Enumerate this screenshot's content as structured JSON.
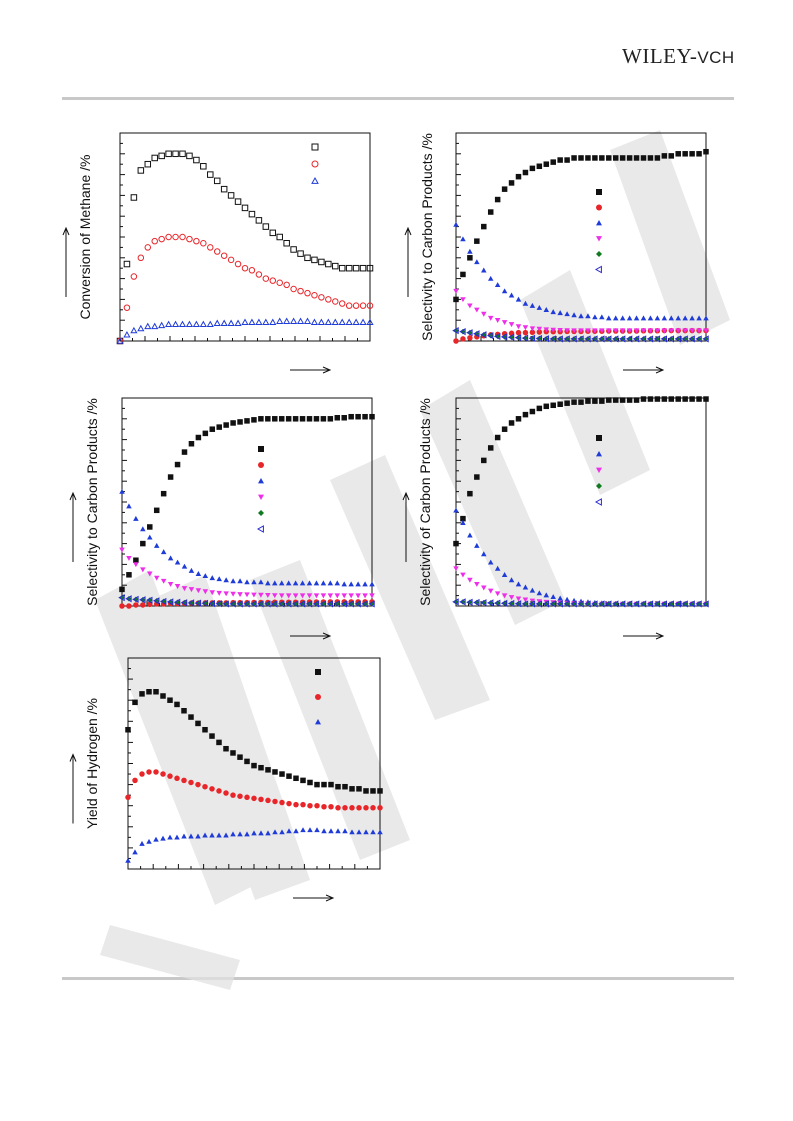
{
  "header": {
    "logo_main": "WILEY",
    "logo_sep": "-",
    "logo_sub": "VCH"
  },
  "watermark": {
    "color": "#d9d9d9"
  },
  "colors": {
    "black": "#111111",
    "red": "#e8262a",
    "blue": "#1f3bd8",
    "magenta": "#ee2ee8",
    "green": "#0f7a1f",
    "darkblue": "#2a2ad0"
  },
  "chart_data": [
    {
      "id": "conversion-methane",
      "type": "scatter",
      "title": "",
      "xlabel": "",
      "ylabel": "Conversion of Methane /%",
      "xlim": [
        0,
        36
      ],
      "ylim": [
        0,
        100
      ],
      "legend_position": "top-right",
      "series": [
        {
          "marker": "square-open",
          "color": "#111111",
          "values": [
            0,
            37,
            69,
            82,
            85,
            88,
            89,
            90,
            90,
            90,
            89,
            87,
            84,
            80,
            77,
            73,
            70,
            67,
            64,
            61,
            58,
            55,
            52,
            50,
            47,
            44,
            42,
            40,
            39,
            38,
            37,
            36,
            35,
            35,
            35,
            35,
            35
          ]
        },
        {
          "marker": "circle-open",
          "color": "#e8262a",
          "values": [
            0,
            16,
            31,
            40,
            45,
            48,
            49,
            50,
            50,
            50,
            49,
            48,
            47,
            45,
            43,
            41,
            39,
            37,
            35,
            34,
            32,
            30,
            29,
            28,
            27,
            25,
            24,
            23,
            22,
            21,
            20,
            19,
            18,
            17,
            17,
            17,
            17
          ]
        },
        {
          "marker": "triangle-open",
          "color": "#1f3bd8",
          "values": [
            0,
            3,
            5,
            6,
            7,
            7,
            7.5,
            8,
            8,
            8,
            8,
            8,
            8,
            8,
            8.5,
            8.5,
            8.5,
            8.5,
            9,
            9,
            9,
            9,
            9,
            9.5,
            9.5,
            9.5,
            9.5,
            9.5,
            9,
            9,
            9,
            9,
            9,
            9,
            9,
            9,
            9
          ]
        }
      ]
    },
    {
      "id": "selectivity-carbon-1",
      "type": "scatter",
      "title": "",
      "xlabel": "",
      "ylabel": "Selectivity to Carbon Products /%",
      "xlim": [
        0,
        36
      ],
      "ylim": [
        0,
        100
      ],
      "legend_position": "right-center",
      "series": [
        {
          "marker": "square-filled",
          "color": "#111111",
          "values": [
            20,
            32,
            40,
            48,
            55,
            62,
            68,
            73,
            76,
            79,
            81,
            83,
            84,
            85,
            86,
            87,
            87,
            88,
            88,
            88,
            88,
            88,
            88,
            88,
            88,
            88,
            88,
            88,
            88,
            88,
            89,
            89,
            90,
            90,
            90,
            90,
            91
          ]
        },
        {
          "marker": "circle-filled",
          "color": "#e8262a",
          "values": [
            0,
            1,
            1.5,
            2,
            2.5,
            3,
            3.2,
            3.5,
            3.7,
            4,
            4,
            4.2,
            4.3,
            4.5,
            4.5,
            4.5,
            4.6,
            4.6,
            4.6,
            4.7,
            4.7,
            4.7,
            4.8,
            4.8,
            4.8,
            4.8,
            4.8,
            4.9,
            4.9,
            4.9,
            5,
            5,
            5,
            5,
            5,
            5,
            5
          ]
        },
        {
          "marker": "triangle-filled",
          "color": "#1f3bd8",
          "values": [
            56,
            49,
            43,
            38,
            34,
            30,
            27,
            24,
            22,
            20,
            18,
            17,
            16,
            15,
            14,
            13.5,
            13,
            12.5,
            12,
            12,
            11.5,
            11.5,
            11,
            11,
            11,
            11,
            11,
            11,
            11,
            11,
            11,
            11,
            11,
            11,
            11,
            11,
            11
          ]
        },
        {
          "marker": "triangle-down-filled",
          "color": "#ee2ee8",
          "values": [
            24,
            20,
            17,
            15,
            13,
            11,
            10,
            9,
            8,
            7,
            6.5,
            6,
            5.8,
            5.5,
            5.3,
            5.2,
            5.1,
            5,
            5,
            5,
            5,
            5,
            5,
            5,
            5,
            5,
            5,
            5,
            5,
            5,
            5,
            5,
            5,
            5,
            5,
            5,
            5
          ]
        },
        {
          "marker": "diamond-filled",
          "color": "#0f7a1f",
          "values": [
            5,
            4.5,
            4,
            3.5,
            3,
            2.6,
            2.2,
            2,
            1.8,
            1.6,
            1.4,
            1.3,
            1.2,
            1.1,
            1,
            1,
            1,
            1,
            1,
            1,
            1,
            1,
            1,
            1,
            1,
            1,
            1,
            1,
            1,
            1,
            1,
            1,
            1,
            1,
            1,
            1,
            1
          ]
        },
        {
          "marker": "triangle-left-open",
          "color": "#2a2ad0",
          "values": [
            5,
            4.5,
            4,
            3.5,
            3,
            2.6,
            2.2,
            2,
            1.8,
            1.6,
            1.4,
            1.3,
            1.2,
            1.1,
            1,
            1,
            1,
            1,
            1,
            1,
            1,
            1,
            1,
            1,
            1,
            1,
            1,
            1,
            1,
            1,
            1,
            1,
            1,
            1,
            1,
            1,
            1
          ]
        }
      ]
    },
    {
      "id": "selectivity-carbon-2",
      "type": "scatter",
      "title": "",
      "xlabel": "",
      "ylabel": "Selectivity to Carbon Products /%",
      "xlim": [
        0,
        36
      ],
      "ylim": [
        0,
        100
      ],
      "legend_position": "right-center",
      "series": [
        {
          "marker": "square-filled",
          "color": "#111111",
          "values": [
            8,
            15,
            22,
            30,
            38,
            46,
            54,
            62,
            68,
            74,
            78,
            81,
            83,
            85,
            86,
            87,
            88,
            88.5,
            89,
            89.5,
            90,
            90,
            90,
            90,
            90,
            90,
            90,
            90,
            90,
            90,
            90,
            90.5,
            90.5,
            91,
            91,
            91,
            91
          ]
        },
        {
          "marker": "circle-filled",
          "color": "#e8262a",
          "values": [
            0,
            0,
            0.5,
            0.5,
            0.8,
            1,
            1,
            1.2,
            1.2,
            1.3,
            1.4,
            1.4,
            1.5,
            1.5,
            1.5,
            1.5,
            1.6,
            1.6,
            1.6,
            1.7,
            1.7,
            1.7,
            1.8,
            1.8,
            1.8,
            1.8,
            1.8,
            1.9,
            1.9,
            1.9,
            2,
            2,
            2,
            2,
            2,
            2,
            2
          ]
        },
        {
          "marker": "triangle-filled",
          "color": "#1f3bd8",
          "values": [
            55,
            48,
            42,
            37,
            33,
            29,
            26,
            23,
            21,
            19,
            17,
            15.5,
            14.5,
            13.5,
            13,
            12.5,
            12,
            12,
            11.5,
            11.5,
            11.5,
            11,
            11,
            11,
            11,
            11,
            11,
            11,
            11,
            11,
            11,
            11,
            10.5,
            10.5,
            10.5,
            10.5,
            10.5
          ]
        },
        {
          "marker": "triangle-down-filled",
          "color": "#ee2ee8",
          "values": [
            27,
            23,
            20,
            17.5,
            15.5,
            13.5,
            12,
            10.5,
            9.5,
            8.5,
            8,
            7.5,
            7,
            6.5,
            6.2,
            6,
            5.8,
            5.6,
            5.5,
            5.4,
            5.3,
            5.2,
            5.1,
            5,
            5,
            5,
            5,
            5,
            5,
            5,
            5,
            5,
            5,
            5,
            5,
            5,
            5
          ]
        },
        {
          "marker": "diamond-filled",
          "color": "#0f7a1f",
          "values": [
            4,
            3.5,
            3.2,
            3,
            2.8,
            2.5,
            2.2,
            2,
            1.8,
            1.6,
            1.5,
            1.4,
            1.3,
            1.2,
            1.1,
            1,
            1,
            1,
            1,
            1,
            1,
            1,
            1,
            1,
            1,
            1,
            1,
            1,
            1,
            1,
            1,
            1,
            1,
            1,
            1,
            1,
            1
          ]
        },
        {
          "marker": "triangle-left-open",
          "color": "#2a2ad0",
          "values": [
            4,
            3.5,
            3.2,
            3,
            2.8,
            2.5,
            2.2,
            2,
            1.8,
            1.6,
            1.5,
            1.4,
            1.3,
            1.2,
            1.1,
            1,
            1,
            1,
            1,
            1,
            1,
            1,
            1,
            1,
            1,
            1,
            1,
            1,
            1,
            1,
            1,
            1,
            1,
            1,
            1,
            1,
            1
          ]
        }
      ]
    },
    {
      "id": "selectivity-carbon-3",
      "type": "scatter",
      "title": "",
      "xlabel": "",
      "ylabel": "Selectivity of Carbon Products /%",
      "xlim": [
        0,
        36
      ],
      "ylim": [
        0,
        100
      ],
      "legend_position": "right-center",
      "series": [
        {
          "marker": "square-filled",
          "color": "#111111",
          "values": [
            30,
            42,
            54,
            62,
            70,
            76,
            81,
            85,
            88,
            90,
            92,
            93.5,
            95,
            96,
            96.5,
            97,
            97.5,
            98,
            98,
            98.5,
            98.5,
            98.5,
            99,
            99,
            99,
            99,
            99,
            99.5,
            99.5,
            99.5,
            99.5,
            99.5,
            99.5,
            99.5,
            99.5,
            99.5,
            99.5
          ]
        },
        {
          "marker": "triangle-filled",
          "color": "#1f3bd8",
          "values": [
            46,
            40,
            34,
            29,
            25,
            21,
            18,
            15,
            12.5,
            10.5,
            9,
            7.5,
            6.2,
            5.2,
            4.4,
            3.7,
            3.1,
            2.6,
            2.2,
            1.9,
            1.6,
            1.4,
            1.2,
            1.1,
            1,
            1,
            1,
            1,
            1,
            1,
            1,
            1,
            1,
            1,
            1,
            1,
            1
          ]
        },
        {
          "marker": "triangle-down-filled",
          "color": "#ee2ee8",
          "values": [
            18,
            15,
            12.5,
            10.5,
            8.8,
            7.3,
            6,
            5,
            4.2,
            3.5,
            3,
            2.5,
            2.2,
            1.9,
            1.7,
            1.5,
            1.4,
            1.3,
            1.2,
            1.1,
            1,
            1,
            1,
            1,
            1,
            1,
            1,
            1,
            1,
            1,
            1,
            1,
            1,
            1,
            1,
            1,
            1
          ]
        },
        {
          "marker": "diamond-filled",
          "color": "#0f7a1f",
          "values": [
            2,
            2,
            1.8,
            1.7,
            1.6,
            1.5,
            1.4,
            1.3,
            1.2,
            1.1,
            1,
            1,
            1,
            1,
            1,
            1,
            1,
            1,
            1,
            1,
            1,
            1,
            1,
            1,
            1,
            1,
            1,
            1,
            1,
            1,
            1,
            1,
            1,
            1,
            1,
            1,
            1
          ]
        },
        {
          "marker": "triangle-left-open",
          "color": "#2a2ad0",
          "values": [
            2,
            2,
            1.8,
            1.7,
            1.6,
            1.5,
            1.4,
            1.3,
            1.2,
            1.1,
            1,
            1,
            1,
            1,
            1,
            1,
            1,
            1,
            1,
            1,
            1,
            1,
            1,
            1,
            1,
            1,
            1,
            1,
            1,
            1,
            1,
            1,
            1,
            1,
            1,
            1,
            1
          ]
        }
      ]
    },
    {
      "id": "yield-hydrogen",
      "type": "scatter",
      "title": "",
      "xlabel": "",
      "ylabel": "Yield of Hydrogen /%",
      "xlim": [
        0,
        36
      ],
      "ylim": [
        0,
        100
      ],
      "legend_position": "top-right",
      "series": [
        {
          "marker": "square-filled",
          "color": "#111111",
          "values": [
            66,
            79,
            83,
            84,
            84,
            82,
            80,
            78,
            75,
            72,
            69,
            66,
            63,
            60,
            57,
            55,
            53,
            51,
            49,
            48,
            47,
            46,
            45,
            44,
            43,
            42,
            41,
            40,
            40,
            40,
            39,
            39,
            38,
            38,
            37,
            37,
            37
          ]
        },
        {
          "marker": "circle-filled",
          "color": "#e8262a",
          "values": [
            34,
            42,
            45,
            46,
            46,
            45,
            44,
            43,
            42,
            41,
            40,
            39,
            38,
            37,
            36,
            35,
            34.5,
            34,
            33.5,
            33,
            32.5,
            32,
            31.5,
            31,
            30.5,
            30.5,
            30,
            30,
            29.5,
            29.5,
            29,
            29,
            29,
            29,
            29,
            29,
            29
          ]
        },
        {
          "marker": "triangle-filled",
          "color": "#1f3bd8",
          "values": [
            4,
            8,
            12,
            13,
            14,
            14.5,
            15,
            15,
            15.5,
            15.5,
            15.5,
            16,
            16,
            16,
            16,
            16.5,
            16.5,
            16.5,
            17,
            17,
            17,
            17.5,
            17.5,
            18,
            18,
            18.5,
            18.5,
            18.5,
            18,
            18,
            18,
            18,
            17.5,
            17.5,
            17.5,
            17.5,
            17.5
          ]
        }
      ]
    }
  ]
}
